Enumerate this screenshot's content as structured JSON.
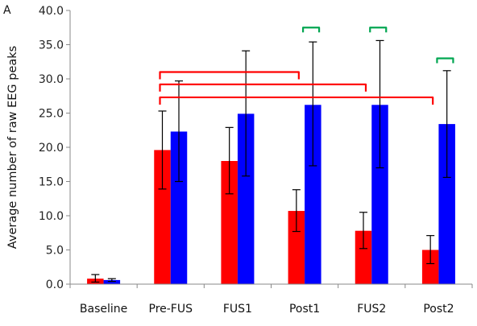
{
  "chart_data": {
    "type": "bar",
    "panel_label": "A",
    "title": "",
    "xlabel": "",
    "ylabel": "Average number of raw EEG peaks",
    "ylim": [
      0,
      40
    ],
    "yticks": [
      0,
      5,
      10,
      15,
      20,
      25,
      30,
      35,
      40
    ],
    "ytick_labels": [
      "0.0",
      "5.0",
      "10.0",
      "15.0",
      "20.0",
      "25.0",
      "30.0",
      "35.0",
      "40.0"
    ],
    "grid": false,
    "categories": [
      "Baseline",
      "Pre-FUS",
      "FUS1",
      "Post1",
      "FUS2",
      "Post2"
    ],
    "category_labels": [
      "Baseline",
      "Pre-FUS",
      "FUS1",
      "Post1",
      "FUS2",
      "Post2"
    ],
    "series": [
      {
        "color": "#ff0000",
        "values": [
          0.8,
          19.6,
          18.0,
          10.7,
          7.8,
          5.0
        ],
        "err_low": [
          0.3,
          13.9,
          13.2,
          7.7,
          5.2,
          3.0
        ],
        "err_high": [
          1.4,
          25.3,
          22.9,
          13.8,
          10.5,
          7.1
        ]
      },
      {
        "color": "#0000ff",
        "values": [
          0.6,
          22.3,
          24.9,
          26.2,
          26.2,
          23.4
        ],
        "err_low": [
          0.4,
          15.0,
          15.8,
          17.3,
          17.0,
          15.6
        ],
        "err_high": [
          0.8,
          29.7,
          34.1,
          35.4,
          35.6,
          31.2
        ]
      }
    ],
    "significance_brackets": [
      {
        "from": "Pre-FUS",
        "to": "Post1",
        "y": 31.0,
        "color": "#ff0000"
      },
      {
        "from": "Pre-FUS",
        "to": "FUS2",
        "y": 29.2,
        "color": "#ff0000"
      },
      {
        "from": "Pre-FUS",
        "to": "Post2",
        "y": 27.3,
        "color": "#ff0000"
      },
      {
        "within": "Post1",
        "y": 37.5,
        "color": "#00a651"
      },
      {
        "within": "FUS2",
        "y": 37.5,
        "color": "#00a651"
      },
      {
        "within": "Post2",
        "y": 33.0,
        "color": "#00a651"
      }
    ]
  }
}
